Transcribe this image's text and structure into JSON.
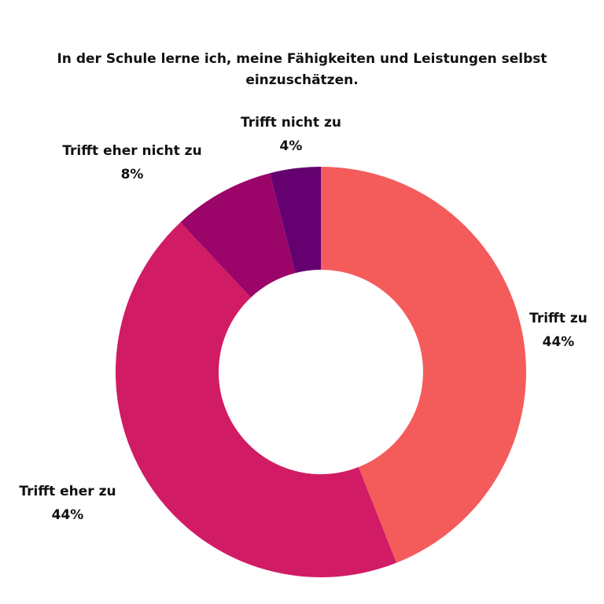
{
  "chart_data": {
    "type": "pie",
    "title": "In der Schule lerne ich, meine Fähigkeiten und Leistungen selbst einzuschätzen.",
    "donut": true,
    "slices": [
      {
        "label": "Trifft zu",
        "value": 44,
        "value_label": "44%",
        "color": "#f45b5b"
      },
      {
        "label": "Trifft eher zu",
        "value": 44,
        "value_label": "44%",
        "color": "#d11b65"
      },
      {
        "label": "Trifft eher nicht zu",
        "value": 8,
        "value_label": "8%",
        "color": "#9b0569"
      },
      {
        "label": "Trifft nicht zu",
        "value": 4,
        "value_label": "4%",
        "color": "#650070"
      }
    ]
  }
}
